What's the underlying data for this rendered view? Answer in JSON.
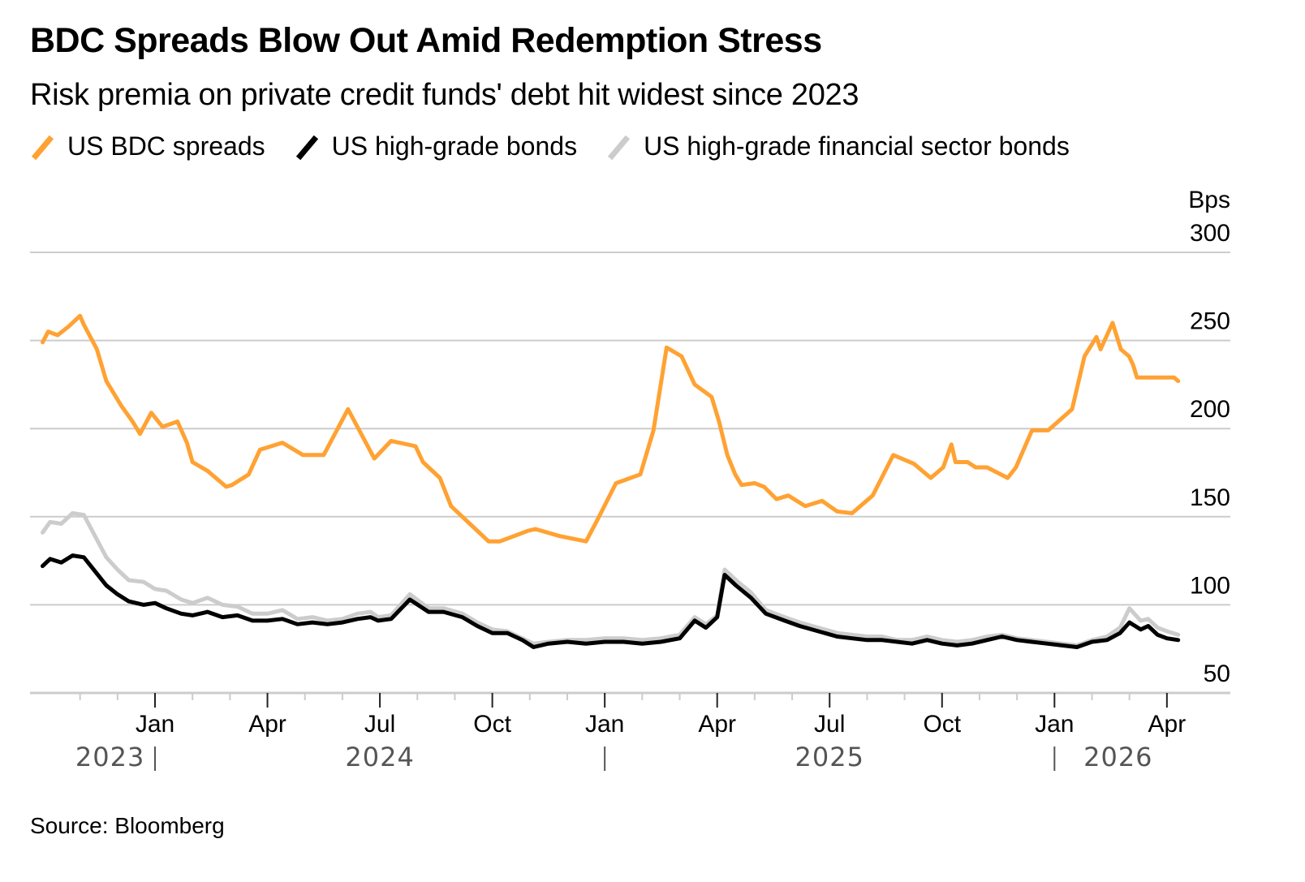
{
  "header": {
    "title": "BDC Spreads Blow Out Amid Redemption Stress",
    "subtitle": "Risk premia on private credit funds' debt hit widest since 2023"
  },
  "legend": [
    {
      "label": "US BDC spreads",
      "color": "#FFA233"
    },
    {
      "label": "US high-grade bonds",
      "color": "#000000"
    },
    {
      "label": "US high-grade financial sector bonds",
      "color": "#CCCCCC"
    }
  ],
  "footer": {
    "source": "Source: Bloomberg"
  },
  "chart_data": {
    "type": "line",
    "title": "BDC Spreads Blow Out Amid Redemption Stress",
    "subtitle": "Risk premia on private credit funds' debt hit widest since 2023",
    "ylabel": "Bps",
    "xlabel": "",
    "ylim": [
      50,
      300
    ],
    "yticks": [
      50,
      100,
      150,
      200,
      250,
      300
    ],
    "ytick_labels": [
      "50",
      "100",
      "150",
      "200",
      "250",
      "300"
    ],
    "grid": true,
    "y_axis_side": "right",
    "legend_position": "top-left",
    "x_unit": "months since Jan 2024",
    "xlim": [
      -3.0,
      27.3
    ],
    "xticks": [
      {
        "x": 0,
        "label": "Jan"
      },
      {
        "x": 3,
        "label": "Apr"
      },
      {
        "x": 6,
        "label": "Jul"
      },
      {
        "x": 9,
        "label": "Oct"
      },
      {
        "x": 12,
        "label": "Jan"
      },
      {
        "x": 15,
        "label": "Apr"
      },
      {
        "x": 18,
        "label": "Jul"
      },
      {
        "x": 21,
        "label": "Oct"
      },
      {
        "x": 24,
        "label": "Jan"
      },
      {
        "x": 27,
        "label": "Apr"
      }
    ],
    "minor_xticks": [
      -2,
      -1,
      1,
      2,
      4,
      5,
      7,
      8,
      10,
      11,
      13,
      14,
      16,
      17,
      19,
      20,
      22,
      23,
      25,
      26
    ],
    "year_labels": [
      {
        "x": -1.2,
        "label": "2023"
      },
      {
        "x": 6.0,
        "label": "2024"
      },
      {
        "x": 18.0,
        "label": "2025"
      },
      {
        "x": 25.7,
        "label": "2026"
      }
    ],
    "year_dividers": [
      0,
      12,
      24
    ],
    "series": [
      {
        "name": "US BDC spreads",
        "color": "#FFA233",
        "x": [
          -3.0,
          -2.85,
          -2.6,
          -2.3,
          -2.0,
          -1.9,
          -1.55,
          -1.3,
          -0.9,
          -0.6,
          -0.4,
          -0.1,
          0.2,
          0.6,
          0.85,
          1.0,
          1.4,
          1.9,
          2.05,
          2.5,
          2.8,
          3.4,
          3.95,
          4.5,
          5.15,
          5.4,
          5.85,
          6.3,
          6.95,
          7.15,
          7.6,
          7.9,
          8.4,
          8.9,
          9.2,
          9.95,
          10.15,
          10.8,
          11.5,
          11.8,
          12.3,
          12.95,
          13.3,
          13.65,
          14.05,
          14.4,
          14.85,
          15.05,
          15.27,
          15.48,
          15.65,
          16.0,
          16.25,
          16.58,
          16.9,
          17.35,
          17.8,
          18.2,
          18.6,
          19.15,
          19.7,
          20.25,
          20.7,
          21.03,
          21.25,
          21.36,
          21.68,
          21.9,
          22.2,
          22.75,
          22.97,
          23.4,
          23.83,
          24.47,
          24.8,
          25.12,
          25.23,
          25.55,
          25.77,
          25.99,
          26.1,
          26.2,
          26.47,
          26.75,
          26.97,
          27.19,
          27.3
        ],
        "values": [
          249,
          255,
          253,
          258,
          264,
          259,
          245,
          227,
          213,
          204,
          197,
          209,
          201,
          204,
          192,
          181,
          176,
          167,
          168,
          174,
          188,
          192,
          185,
          185,
          211,
          201,
          183,
          193,
          190,
          181,
          172,
          156,
          146,
          136,
          136,
          142,
          143,
          139,
          136,
          148,
          169,
          174,
          199,
          246,
          241,
          225,
          218,
          204,
          185,
          174,
          168,
          169,
          167,
          160,
          162,
          156,
          159,
          153,
          152,
          162,
          185,
          180,
          172,
          178,
          191,
          181,
          181,
          178,
          178,
          172,
          178,
          199,
          199,
          211,
          241,
          252,
          245,
          260,
          245,
          241,
          236,
          229,
          229,
          229,
          229,
          229,
          227
        ]
      },
      {
        "name": "US high-grade bonds",
        "color": "#000000",
        "x": [
          -3.0,
          -2.8,
          -2.5,
          -2.2,
          -1.9,
          -1.6,
          -1.3,
          -1.0,
          -0.7,
          -0.3,
          0.0,
          0.3,
          0.7,
          1.0,
          1.4,
          1.8,
          2.2,
          2.6,
          3.0,
          3.4,
          3.8,
          4.2,
          4.6,
          5.0,
          5.4,
          5.75,
          5.95,
          6.3,
          6.8,
          7.3,
          7.7,
          8.2,
          8.6,
          9.0,
          9.4,
          9.8,
          10.1,
          10.5,
          11.0,
          11.5,
          12.0,
          12.5,
          13.0,
          13.5,
          14.0,
          14.4,
          14.7,
          15.0,
          15.2,
          15.5,
          15.9,
          16.3,
          16.8,
          17.2,
          17.7,
          18.2,
          18.6,
          19.0,
          19.4,
          19.8,
          20.2,
          20.6,
          21.0,
          21.4,
          21.8,
          22.2,
          22.6,
          23.0,
          23.4,
          23.8,
          24.2,
          24.6,
          25.0,
          25.4,
          25.75,
          26.0,
          26.3,
          26.5,
          26.75,
          27.0,
          27.3
        ],
        "values": [
          122,
          126,
          124,
          128,
          127,
          119,
          111,
          106,
          102,
          100,
          101,
          98,
          95,
          94,
          96,
          93,
          94,
          91,
          91,
          92,
          89,
          90,
          89,
          90,
          92,
          93,
          91,
          92,
          103,
          96,
          96,
          93,
          88,
          84,
          84,
          80,
          76,
          78,
          79,
          78,
          79,
          79,
          78,
          79,
          81,
          91,
          87,
          93,
          117,
          111,
          104,
          95,
          91,
          88,
          85,
          82,
          81,
          80,
          80,
          79,
          78,
          80,
          78,
          77,
          78,
          80,
          82,
          80,
          79,
          78,
          77,
          76,
          79,
          80,
          84,
          90,
          86,
          88,
          83,
          81,
          80
        ]
      },
      {
        "name": "US high-grade financial sector bonds",
        "color": "#CCCCCC",
        "x": [
          -3.0,
          -2.8,
          -2.5,
          -2.2,
          -1.9,
          -1.6,
          -1.3,
          -1.0,
          -0.7,
          -0.3,
          0.0,
          0.3,
          0.7,
          1.0,
          1.4,
          1.8,
          2.2,
          2.6,
          3.0,
          3.4,
          3.8,
          4.2,
          4.6,
          5.0,
          5.4,
          5.75,
          5.95,
          6.3,
          6.8,
          7.3,
          7.7,
          8.2,
          8.6,
          9.0,
          9.4,
          9.8,
          10.1,
          10.5,
          11.0,
          11.5,
          12.0,
          12.5,
          13.0,
          13.5,
          14.0,
          14.4,
          14.7,
          15.0,
          15.2,
          15.5,
          15.9,
          16.3,
          16.8,
          17.2,
          17.7,
          18.2,
          18.6,
          19.0,
          19.4,
          19.8,
          20.2,
          20.6,
          21.0,
          21.4,
          21.8,
          22.2,
          22.6,
          23.0,
          23.4,
          23.8,
          24.2,
          24.6,
          25.0,
          25.4,
          25.75,
          26.0,
          26.3,
          26.5,
          26.75,
          27.0,
          27.3
        ],
        "values": [
          141,
          147,
          146,
          152,
          151,
          139,
          127,
          120,
          114,
          113,
          109,
          108,
          103,
          101,
          104,
          100,
          99,
          95,
          95,
          97,
          92,
          93,
          91,
          92,
          95,
          96,
          93,
          94,
          106,
          98,
          98,
          95,
          90,
          86,
          85,
          81,
          78,
          79,
          80,
          80,
          81,
          81,
          80,
          81,
          83,
          93,
          89,
          94,
          120,
          114,
          107,
          97,
          93,
          90,
          87,
          84,
          83,
          82,
          82,
          80,
          80,
          82,
          80,
          79,
          80,
          82,
          83,
          81,
          80,
          79,
          78,
          77,
          80,
          82,
          87,
          98,
          91,
          92,
          87,
          85,
          83
        ]
      }
    ]
  }
}
